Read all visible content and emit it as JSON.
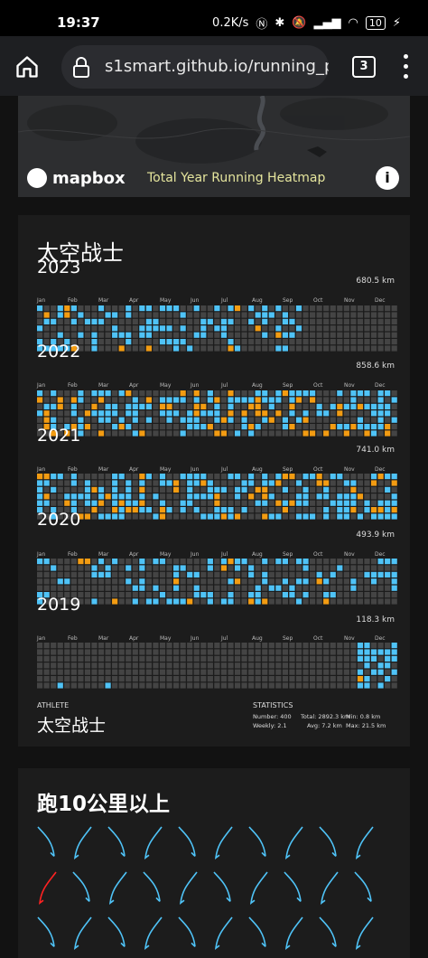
{
  "status_bar": {
    "time": "19:37",
    "network_speed": "0.2K/s",
    "battery": "10"
  },
  "browser": {
    "url": "s1smart.github.io/running_pag",
    "tab_count": "3"
  },
  "map": {
    "attribution": "mapbox",
    "heatmap_label": "Total Year Running Heatmap",
    "info_button": "i"
  },
  "profile": {
    "title": "太空战士",
    "months": [
      "Jan",
      "Feb",
      "Mar",
      "Apr",
      "May",
      "Jun",
      "Jul",
      "Aug",
      "Sep",
      "Oct",
      "Nov",
      "Dec"
    ],
    "years": [
      {
        "year": "2023",
        "distance": "680.5 km"
      },
      {
        "year": "2022",
        "distance": "858.6 km"
      },
      {
        "year": "2021",
        "distance": "741.0 km"
      },
      {
        "year": "2020",
        "distance": "493.9 km"
      },
      {
        "year": "2019",
        "distance": "118.3 km"
      }
    ],
    "athlete_caption": "ATHLETE",
    "athlete_name": "太空战士",
    "statistics_caption": "STATISTICS",
    "stats": {
      "number": "Number: 400",
      "total": "Total: 2892.3 km",
      "min": "Min: 0.8 km",
      "weekly": "Weekly: 2.1",
      "avg": "Avg: 7.2 km",
      "max": "Max: 21.5 km"
    }
  },
  "routes_section": {
    "title": "跑10公里以上"
  },
  "colors": {
    "cell_empty": "#444444",
    "cell_blue": "#4fc3f7",
    "cell_orange": "#f39c12",
    "cell_red": "#e74c3c",
    "route_blue": "#4fc3f7",
    "route_red": "#ff2222",
    "map_label": "#e5e59d"
  }
}
